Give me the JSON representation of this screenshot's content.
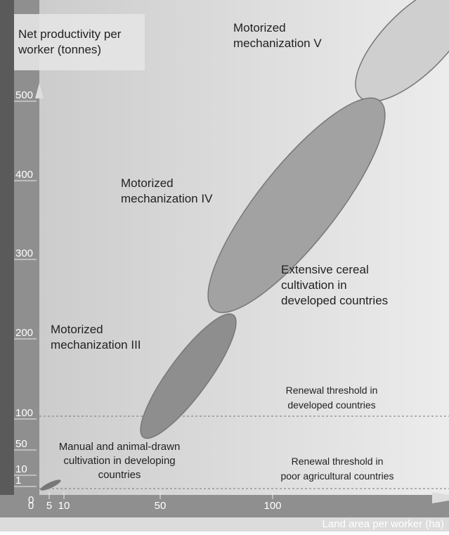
{
  "y_axis": {
    "label_lines": [
      "Net productivity per",
      "worker (tonnes)"
    ],
    "ticks": [
      0,
      1,
      10,
      50,
      100,
      200,
      300,
      400,
      500
    ]
  },
  "x_axis": {
    "label": "Land area per worker (ha)",
    "ticks": [
      0,
      5,
      10,
      50,
      100
    ]
  },
  "regions": [
    {
      "label_lines": [
        "Motorized",
        "mechanization III"
      ]
    },
    {
      "label_lines": [
        "Motorized",
        "mechanization IV"
      ]
    },
    {
      "label_lines": [
        "Motorized",
        "mechanization V"
      ]
    }
  ],
  "annotations": [
    {
      "label_lines": [
        "Extensive cereal",
        "cultivation in",
        "developed countries"
      ]
    },
    {
      "label_lines": [
        "Manual and animal-drawn",
        "cultivation in developing",
        "countries"
      ]
    },
    {
      "label_lines": [
        "Renewal threshold in",
        "developed countries"
      ]
    },
    {
      "label_lines": [
        "Renewal threshold in",
        "poor agricultural countries"
      ]
    }
  ]
}
